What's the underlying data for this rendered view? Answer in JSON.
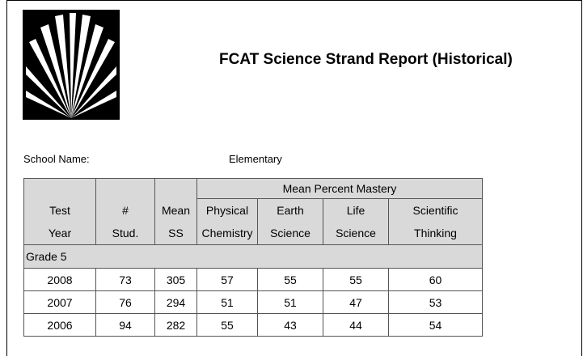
{
  "header": {
    "title": "FCAT Science Strand Report (Historical)"
  },
  "school": {
    "label": "School Name:",
    "value": "Elementary"
  },
  "table": {
    "group_header": "Mean Percent Mastery",
    "columns": [
      [
        "Test",
        "Year"
      ],
      [
        "#",
        "Stud."
      ],
      [
        "Mean",
        "SS"
      ],
      [
        "Physical",
        "Chemistry"
      ],
      [
        "Earth",
        "Science"
      ],
      [
        "Life",
        "Science"
      ],
      [
        "Scientific",
        "Thinking"
      ]
    ],
    "section": "Grade 5",
    "rows": [
      [
        2008,
        73,
        305,
        57,
        55,
        55,
        60
      ],
      [
        2007,
        76,
        294,
        51,
        51,
        47,
        53
      ],
      [
        2006,
        94,
        282,
        55,
        43,
        44,
        54
      ]
    ]
  }
}
